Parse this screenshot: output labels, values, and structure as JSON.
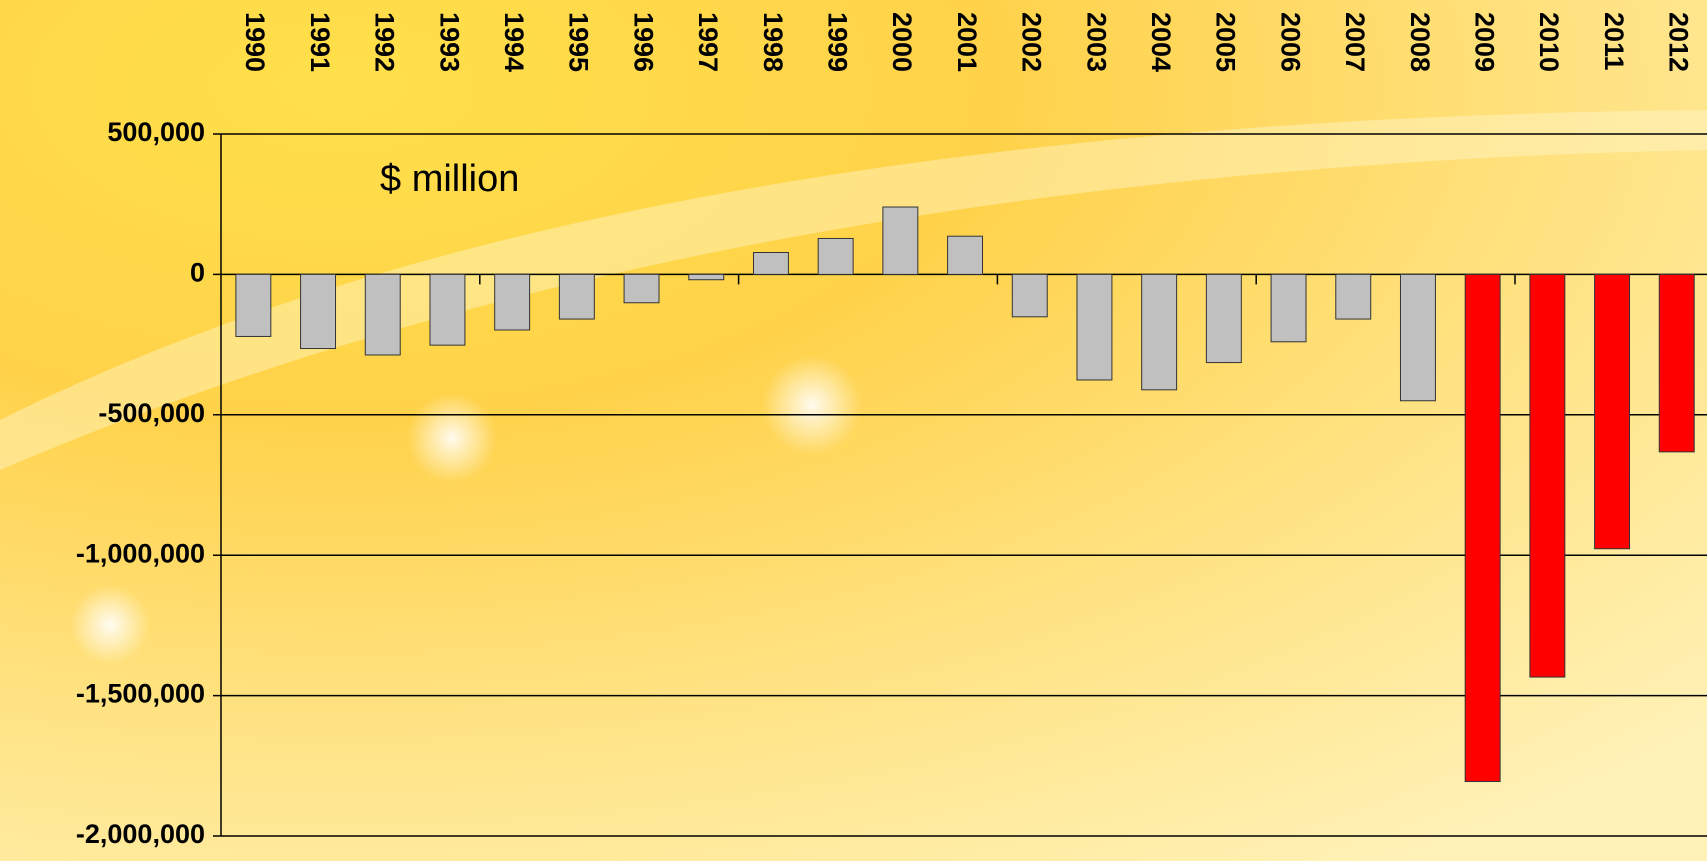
{
  "chart_data": {
    "type": "bar",
    "annotation": "$ million",
    "categories": [
      "1990",
      "1991",
      "1992",
      "1993",
      "1994",
      "1995",
      "1996",
      "1997",
      "1998",
      "1999",
      "2000",
      "2001",
      "2002",
      "2003",
      "2004",
      "2005",
      "2006",
      "2007",
      "2008",
      "2009",
      "2010",
      "2011",
      "2012"
    ],
    "values": [
      -221000,
      -264000,
      -287000,
      -252000,
      -198000,
      -159000,
      -101000,
      -19000,
      78000,
      128000,
      240000,
      136000,
      -151000,
      -376000,
      -411000,
      -314000,
      -240000,
      -159000,
      -450000,
      -1806000,
      -1434000,
      -977000,
      -632000
    ],
    "colors": [
      "#c0c0c0",
      "#c0c0c0",
      "#c0c0c0",
      "#c0c0c0",
      "#c0c0c0",
      "#c0c0c0",
      "#c0c0c0",
      "#c0c0c0",
      "#c0c0c0",
      "#c0c0c0",
      "#c0c0c0",
      "#c0c0c0",
      "#c0c0c0",
      "#c0c0c0",
      "#c0c0c0",
      "#c0c0c0",
      "#c0c0c0",
      "#c0c0c0",
      "#c0c0c0",
      "#ff0000",
      "#ff0000",
      "#ff0000",
      "#ff0000"
    ],
    "ylim": [
      -2000000,
      500000
    ],
    "yticks": [
      {
        "value": -2000000,
        "label": "-2,000,000"
      },
      {
        "value": -1500000,
        "label": "-1,500,000"
      },
      {
        "value": -1000000,
        "label": "-1,000,000"
      },
      {
        "value": -500000,
        "label": "-500,000"
      },
      0,
      {
        "value": 500000,
        "label": "500,000"
      }
    ],
    "grid": true
  }
}
